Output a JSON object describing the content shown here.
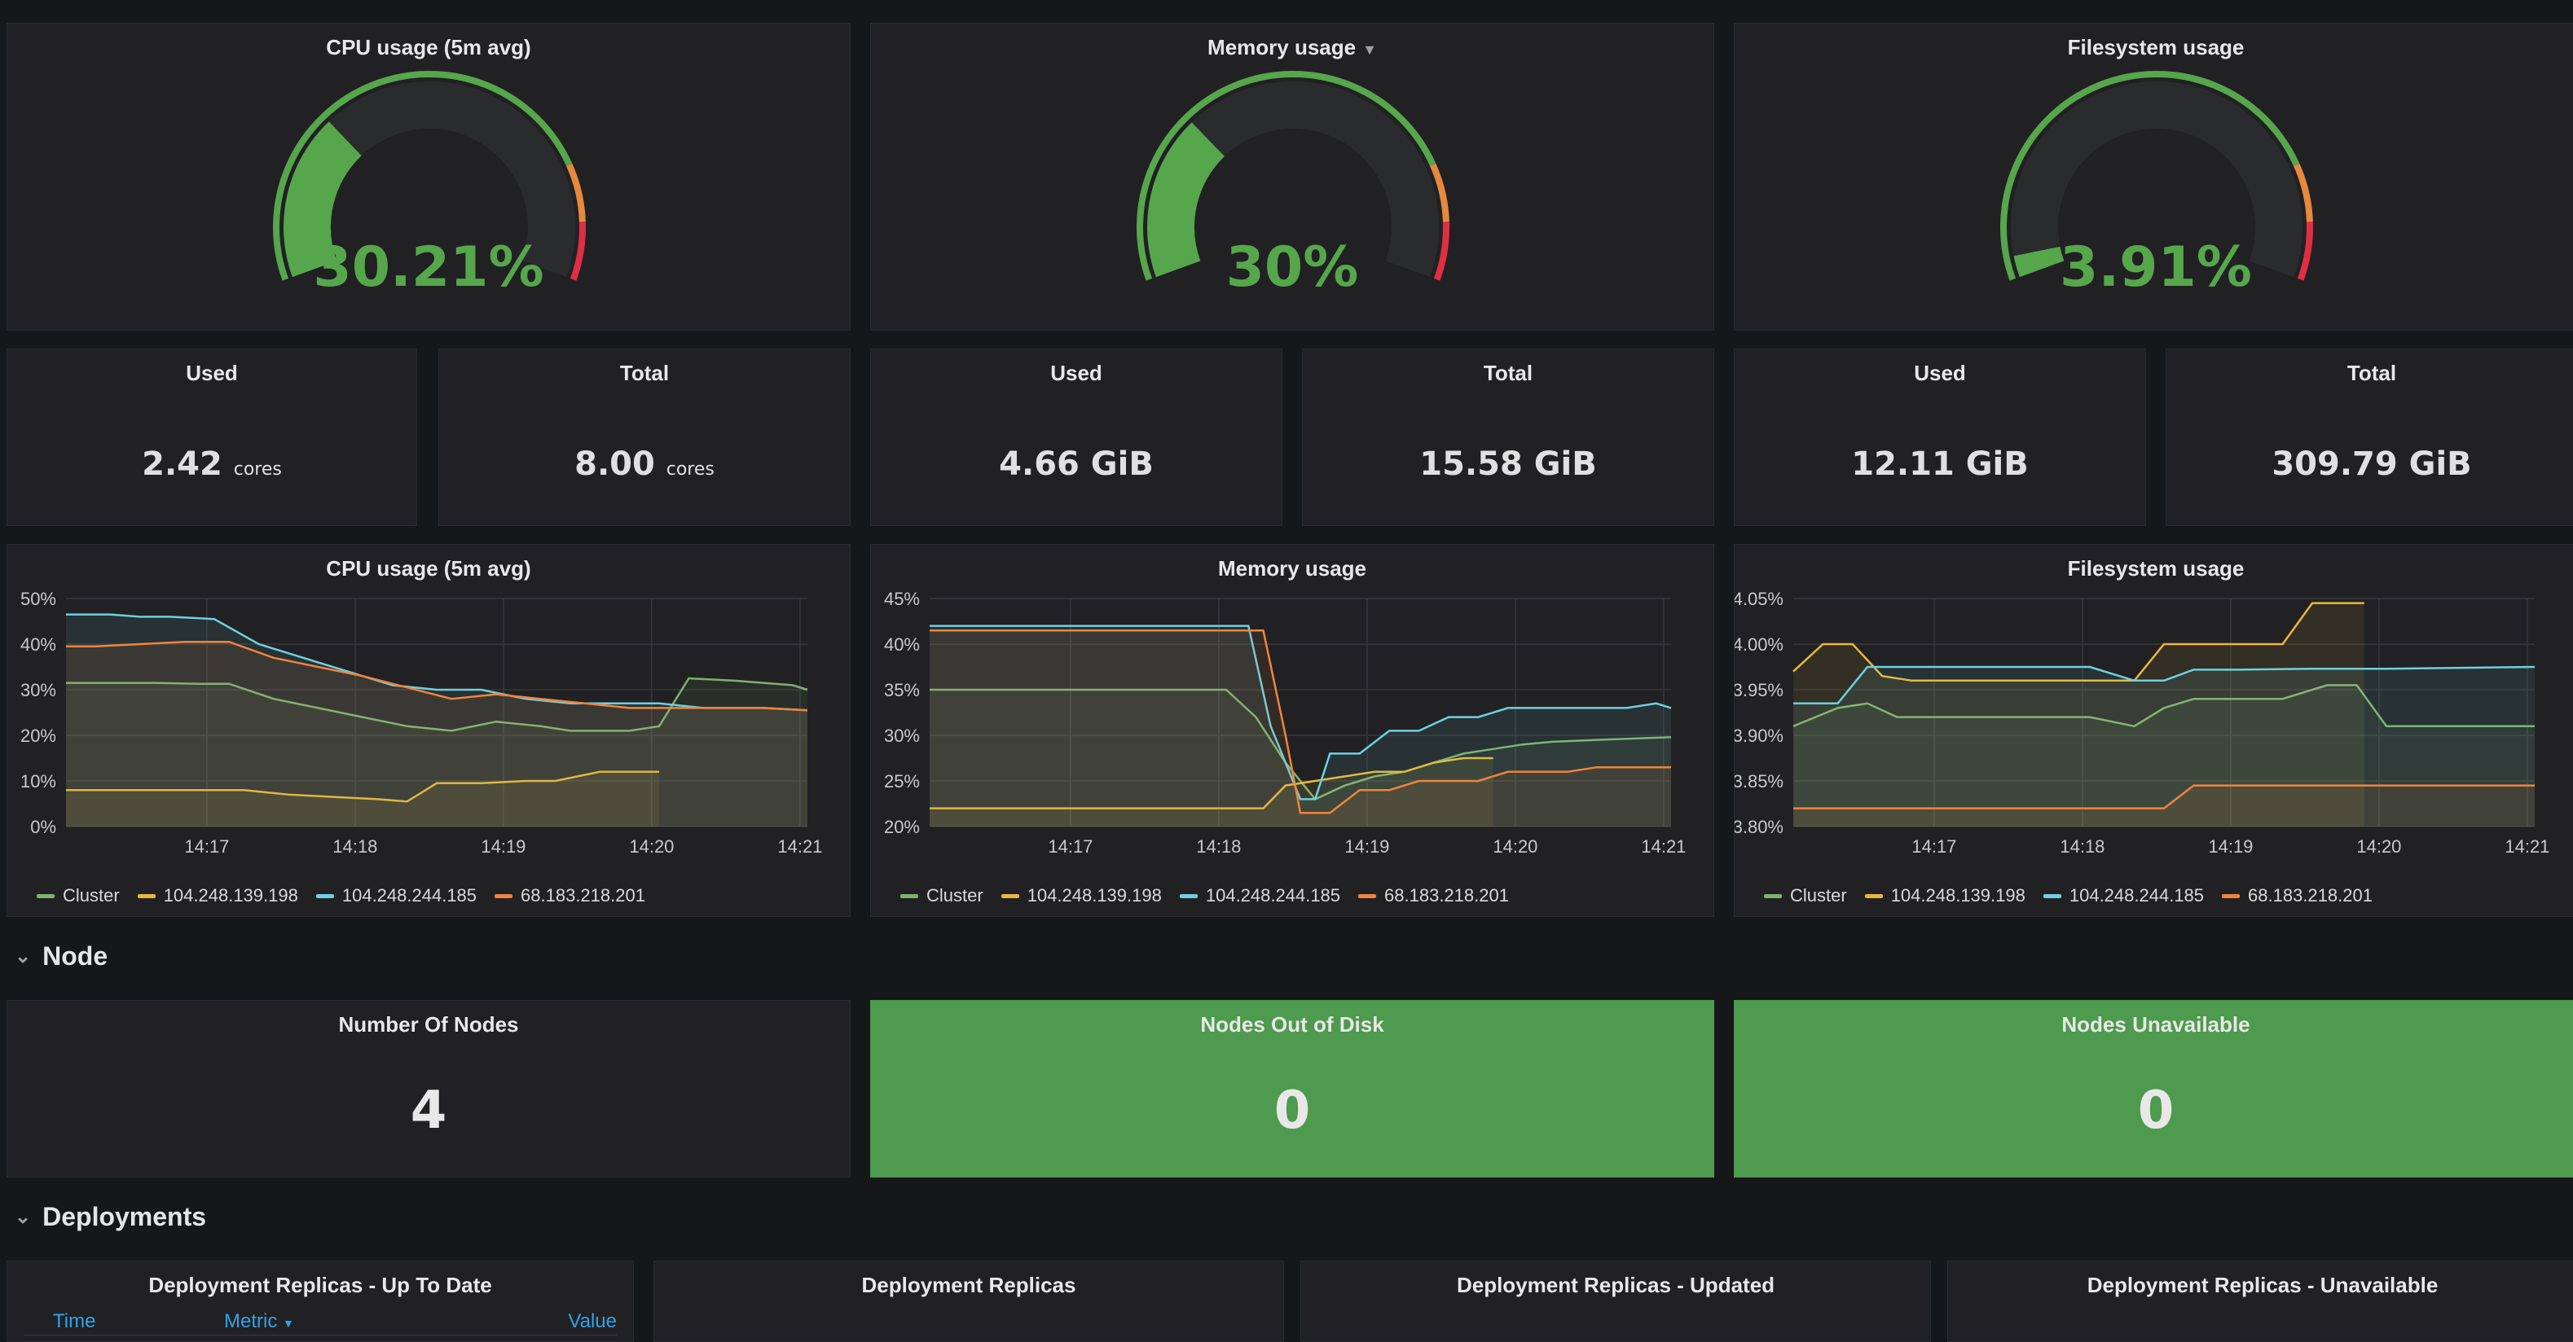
{
  "colors": {
    "green": "#56a64b",
    "orange": "#e5893d",
    "red": "#e02f44",
    "series_cluster": "#7eb26d",
    "series_a": "#eab839",
    "series_b": "#6ed0e0",
    "series_c": "#ef843c"
  },
  "gauges": [
    {
      "title": "CPU usage (5m avg)",
      "value": "30.21%",
      "fraction": 0.3021
    },
    {
      "title": "Memory usage",
      "value": "30%",
      "fraction": 0.3,
      "has_menu": true
    },
    {
      "title": "Filesystem usage",
      "value": "3.91%",
      "fraction": 0.0391
    }
  ],
  "stats": [
    {
      "title": "Used",
      "value": "2.42",
      "unit": "cores"
    },
    {
      "title": "Total",
      "value": "8.00",
      "unit": "cores"
    },
    {
      "title": "Used",
      "value": "4.66 GiB",
      "unit": ""
    },
    {
      "title": "Total",
      "value": "15.58 GiB",
      "unit": ""
    },
    {
      "title": "Used",
      "value": "12.11 GiB",
      "unit": ""
    },
    {
      "title": "Total",
      "value": "309.79 GiB",
      "unit": ""
    }
  ],
  "legend": [
    "Cluster",
    "104.248.139.198",
    "104.248.244.185",
    "68.183.218.201"
  ],
  "chart_data": [
    {
      "type": "line",
      "title": "CPU usage (5m avg)",
      "x_ticks": [
        "14:17",
        "14:18",
        "14:19",
        "14:20",
        "14:21"
      ],
      "y_ticks": [
        "0%",
        "10%",
        "20%",
        "30%",
        "40%",
        "50%"
      ],
      "ylim": [
        0,
        50
      ],
      "xlim": [
        0,
        5
      ],
      "series": [
        {
          "name": "Cluster",
          "x": [
            0,
            0.3,
            0.6,
            0.9,
            1.1,
            1.4,
            1.7,
            2.0,
            2.3,
            2.6,
            2.9,
            3.2,
            3.4,
            3.6,
            3.8,
            4.0,
            4.2,
            4.5,
            4.9,
            5.0
          ],
          "y": [
            31.5,
            31.5,
            31.5,
            31.3,
            31.3,
            28,
            26,
            24,
            22,
            21,
            23,
            22,
            21,
            21,
            21,
            22,
            32.5,
            32,
            31,
            30
          ]
        },
        {
          "name": "104.248.139.198",
          "x": [
            0,
            0.3,
            0.6,
            0.9,
            1.2,
            1.5,
            1.8,
            2.1,
            2.3,
            2.5,
            2.8,
            3.1,
            3.3,
            3.6,
            3.8,
            4.0
          ],
          "y": [
            8,
            8,
            8,
            8,
            8,
            7,
            6.5,
            6,
            5.5,
            9.5,
            9.5,
            10,
            10,
            12,
            12,
            12
          ]
        },
        {
          "name": "104.248.244.185",
          "x": [
            0,
            0.3,
            0.5,
            0.7,
            1.0,
            1.3,
            1.6,
            1.9,
            2.2,
            2.5,
            2.8,
            3.1,
            3.4,
            3.7,
            4.0,
            4.3,
            4.7,
            5.0
          ],
          "y": [
            46.5,
            46.5,
            46,
            46,
            45.5,
            40,
            37,
            34,
            31,
            30,
            30,
            28,
            27,
            27,
            27,
            26,
            26,
            25.5
          ]
        },
        {
          "name": "68.183.218.201",
          "x": [
            0,
            0.2,
            0.5,
            0.8,
            1.1,
            1.4,
            1.7,
            2.0,
            2.3,
            2.6,
            2.9,
            3.2,
            3.5,
            3.8,
            4.1,
            4.4,
            4.7,
            5.0
          ],
          "y": [
            39.5,
            39.5,
            40,
            40.5,
            40.5,
            37,
            35,
            33,
            30.5,
            28,
            29,
            28,
            27,
            26,
            26,
            26,
            26,
            25.5
          ]
        }
      ]
    },
    {
      "type": "line",
      "title": "Memory usage",
      "x_ticks": [
        "14:17",
        "14:18",
        "14:19",
        "14:20",
        "14:21"
      ],
      "y_ticks": [
        "20%",
        "25%",
        "30%",
        "35%",
        "40%",
        "45%"
      ],
      "ylim": [
        20,
        45
      ],
      "xlim": [
        0,
        5
      ],
      "series": [
        {
          "name": "Cluster",
          "x": [
            0,
            0.5,
            1.0,
            1.5,
            2.0,
            2.2,
            2.4,
            2.6,
            2.8,
            3.0,
            3.2,
            3.4,
            3.6,
            3.8,
            4.0,
            4.2,
            4.5,
            5.0
          ],
          "y": [
            35,
            35,
            35,
            35,
            35,
            32,
            27,
            23,
            24.5,
            25.5,
            26,
            27,
            28,
            28.5,
            29,
            29.3,
            29.5,
            29.8
          ]
        },
        {
          "name": "104.248.139.198",
          "x": [
            0,
            0.5,
            1.0,
            1.5,
            2.0,
            2.25,
            2.4,
            2.6,
            2.8,
            3.0,
            3.2,
            3.4,
            3.6,
            3.8
          ],
          "y": [
            22,
            22,
            22,
            22,
            22,
            22,
            24.5,
            25,
            25.5,
            26,
            26,
            27,
            27.5,
            27.5
          ]
        },
        {
          "name": "104.248.244.185",
          "x": [
            0,
            0.5,
            1.0,
            1.5,
            2.0,
            2.15,
            2.3,
            2.5,
            2.6,
            2.7,
            2.9,
            3.1,
            3.3,
            3.5,
            3.7,
            3.9,
            4.1,
            4.3,
            4.5,
            4.7,
            4.9,
            5.0
          ],
          "y": [
            42,
            42,
            42,
            42,
            42,
            42,
            31,
            23,
            23,
            28,
            28,
            30.5,
            30.5,
            32,
            32,
            33,
            33,
            33,
            33,
            33,
            33.5,
            33
          ]
        },
        {
          "name": "68.183.218.201",
          "x": [
            0,
            0.5,
            1.0,
            1.5,
            2.0,
            2.25,
            2.4,
            2.5,
            2.7,
            2.9,
            3.1,
            3.3,
            3.5,
            3.7,
            3.9,
            4.1,
            4.3,
            4.5,
            5.0
          ],
          "y": [
            41.5,
            41.5,
            41.5,
            41.5,
            41.5,
            41.5,
            30,
            21.5,
            21.5,
            24,
            24,
            25,
            25,
            25,
            26,
            26,
            26,
            26.5,
            26.5
          ]
        }
      ]
    },
    {
      "type": "line",
      "title": "Filesystem usage",
      "x_ticks": [
        "14:17",
        "14:18",
        "14:19",
        "14:20",
        "14:21"
      ],
      "y_ticks": [
        "3.80%",
        "3.85%",
        "3.90%",
        "3.95%",
        "4.00%",
        "4.05%"
      ],
      "ylim": [
        3.8,
        4.05
      ],
      "xlim": [
        0,
        5
      ],
      "series": [
        {
          "name": "Cluster",
          "x": [
            0,
            0.3,
            0.5,
            0.7,
            1.0,
            1.5,
            2.0,
            2.3,
            2.5,
            2.7,
            3.0,
            3.3,
            3.6,
            3.8,
            4.0,
            4.2,
            4.4,
            5.0
          ],
          "y": [
            3.91,
            3.93,
            3.935,
            3.92,
            3.92,
            3.92,
            3.92,
            3.91,
            3.93,
            3.94,
            3.94,
            3.94,
            3.955,
            3.955,
            3.91,
            3.91,
            3.91,
            3.91
          ]
        },
        {
          "name": "104.248.139.198",
          "x": [
            0,
            0.2,
            0.4,
            0.6,
            0.8,
            1.0,
            1.5,
            2.0,
            2.3,
            2.5,
            2.7,
            3.0,
            3.3,
            3.5,
            3.7,
            3.85
          ],
          "y": [
            3.97,
            4.0,
            4.0,
            3.965,
            3.96,
            3.96,
            3.96,
            3.96,
            3.96,
            4.0,
            4.0,
            4.0,
            4.0,
            4.045,
            4.045,
            4.045
          ]
        },
        {
          "name": "104.248.244.185",
          "x": [
            0,
            0.3,
            0.5,
            0.7,
            1.0,
            1.5,
            2.0,
            2.3,
            2.5,
            2.7,
            3.0,
            3.5,
            4.0,
            4.5,
            5.0
          ],
          "y": [
            3.935,
            3.935,
            3.975,
            3.975,
            3.975,
            3.975,
            3.975,
            3.96,
            3.96,
            3.972,
            3.972,
            3.973,
            3.973,
            3.974,
            3.975
          ]
        },
        {
          "name": "68.183.218.201",
          "x": [
            0,
            0.5,
            1.0,
            1.5,
            2.0,
            2.3,
            2.5,
            2.7,
            3.0,
            3.5,
            4.0,
            4.5,
            5.0
          ],
          "y": [
            3.82,
            3.82,
            3.82,
            3.82,
            3.82,
            3.82,
            3.82,
            3.845,
            3.845,
            3.845,
            3.845,
            3.845,
            3.845
          ]
        }
      ]
    }
  ],
  "node_section": {
    "title": "Node"
  },
  "node_stats": [
    {
      "title": "Number Of Nodes",
      "value": "4"
    },
    {
      "title": "Nodes Out of Disk",
      "value": "0"
    },
    {
      "title": "Nodes Unavailable",
      "value": "0"
    }
  ],
  "deploy_section": {
    "title": "Deployments"
  },
  "deploy_panels": [
    {
      "title": "Deployment Replicas - Up To Date"
    },
    {
      "title": "Deployment Replicas"
    },
    {
      "title": "Deployment Replicas - Updated"
    },
    {
      "title": "Deployment Replicas - Unavailable"
    }
  ],
  "deploy_table": {
    "col_time": "Time",
    "col_metric": "Metric",
    "col_value": "Value"
  }
}
